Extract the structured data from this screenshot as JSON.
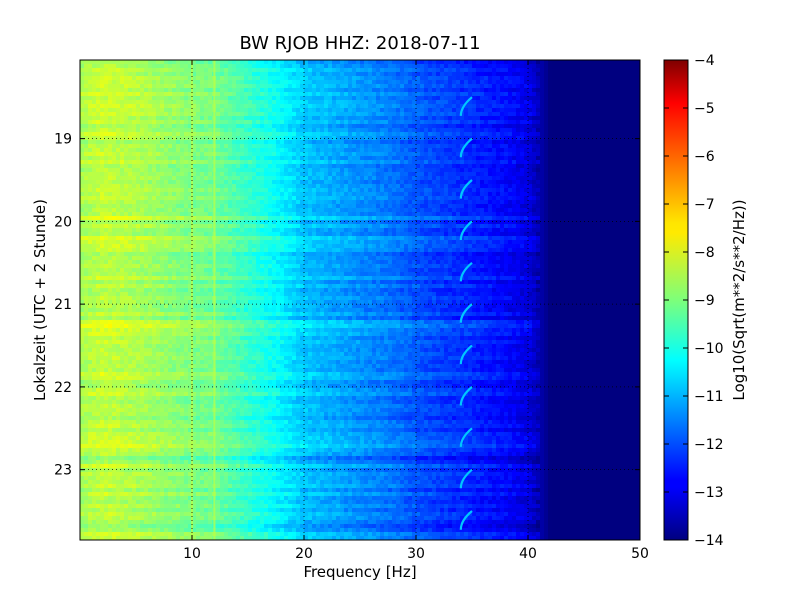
{
  "chart_data": {
    "type": "heatmap",
    "title": "BW RJOB HHZ: 2018-07-11",
    "xlabel": "Frequency [Hz]",
    "ylabel": "Lokalzeit (UTC + 2 Stunde)",
    "xlim": [
      0,
      50
    ],
    "ylim": [
      23.85,
      18.05
    ],
    "x_ticks": [
      10,
      20,
      30,
      40,
      50
    ],
    "x_tick_labels": [
      "10",
      "20",
      "30",
      "40",
      "50"
    ],
    "y_ticks": [
      19,
      20,
      21,
      22,
      23
    ],
    "y_tick_labels": [
      "19",
      "20",
      "21",
      "22",
      "23"
    ],
    "grid": true,
    "colormap": "jet",
    "colorbar": {
      "label": "Log10(Sqrt(m**2/s**2/Hz))",
      "range": [
        -14,
        -4
      ],
      "ticks": [
        -4,
        -5,
        -6,
        -7,
        -8,
        -9,
        -10,
        -11,
        -12,
        -13,
        -14
      ],
      "tick_labels": [
        "−4",
        "−5",
        "−6",
        "−7",
        "−8",
        "−9",
        "−10",
        "−11",
        "−12",
        "−13",
        "−14"
      ]
    },
    "spectral_profile": {
      "frequency_hz": [
        0,
        2,
        5,
        8,
        10,
        12,
        15,
        18,
        20,
        22,
        25,
        28,
        30,
        32,
        35,
        38,
        40,
        41,
        42,
        45,
        50
      ],
      "level": [
        -8.6,
        -8.3,
        -8.5,
        -8.8,
        -9.0,
        -9.1,
        -9.7,
        -10.3,
        -10.8,
        -11.0,
        -11.3,
        -11.6,
        -11.9,
        -12.1,
        -12.4,
        -12.7,
        -13.0,
        -13.5,
        -14.0,
        -14.0,
        -14.0
      ]
    },
    "features": {
      "line_frequencies_hz": [
        10,
        12
      ],
      "wandering_line_hz": [
        34,
        35
      ],
      "wandering_line_period_h": 0.5
    }
  }
}
